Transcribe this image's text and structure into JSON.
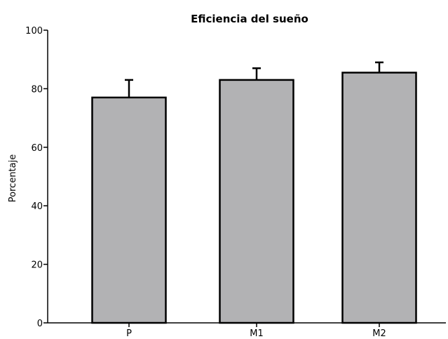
{
  "chart_data": {
    "type": "bar",
    "title": "Eficiencia del sueño",
    "xlabel": "",
    "ylabel": "Porcentaje",
    "categories": [
      "P",
      "M1",
      "M2"
    ],
    "values": [
      77,
      83,
      85.5
    ],
    "error_upper": [
      83,
      87,
      89
    ],
    "ylim": [
      0,
      100
    ],
    "yticks": [
      0,
      20,
      40,
      60,
      80,
      100
    ],
    "bar_color": "#b2b2b4",
    "grid": false,
    "legend": "none"
  }
}
